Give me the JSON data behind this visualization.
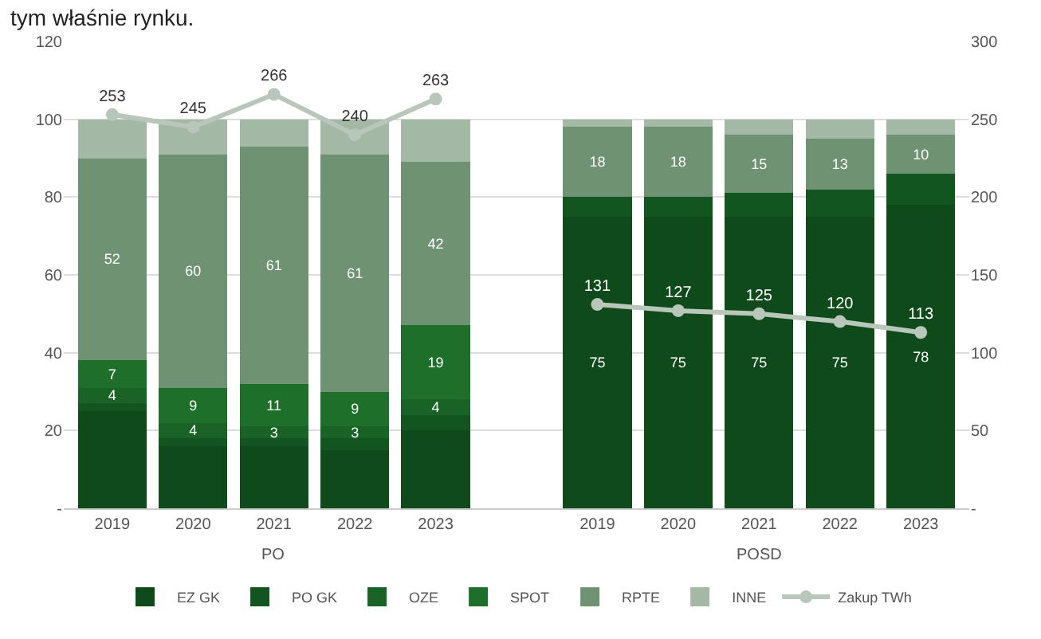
{
  "chart_data": {
    "type": "bar",
    "title": "tym właśnie rynku.",
    "stacked": true,
    "categories": [
      "2019",
      "2020",
      "2021",
      "2022",
      "2023",
      null,
      "2019",
      "2020",
      "2021",
      "2022",
      "2023"
    ],
    "annotations": [
      "PO",
      "POSD"
    ],
    "series": [
      {
        "name": "EZ GK",
        "color": "#0f4a1a",
        "values": [
          25,
          16,
          16,
          15,
          20,
          null,
          75,
          75,
          75,
          75,
          78
        ],
        "value_labels": [
          null,
          null,
          null,
          null,
          null,
          null,
          "75",
          "75",
          "75",
          "75",
          "78"
        ]
      },
      {
        "name": "PO GK",
        "color": "#135520",
        "values": [
          2,
          2,
          2,
          3,
          4,
          null,
          5,
          5,
          6,
          7,
          8
        ]
      },
      {
        "name": "OZE",
        "color": "#186325",
        "values": [
          4,
          4,
          3,
          3,
          4,
          null,
          null,
          null,
          null,
          null,
          null
        ],
        "value_labels": [
          "4",
          "4",
          "3",
          "3",
          "4",
          null,
          null,
          null,
          null,
          null,
          null
        ]
      },
      {
        "name": "SPOT",
        "color": "#1d6f2a",
        "values": [
          7,
          9,
          11,
          9,
          19,
          null,
          null,
          null,
          null,
          null,
          null
        ],
        "value_labels": [
          "7",
          "9",
          "11",
          "9",
          "19",
          null,
          null,
          null,
          null,
          null,
          null
        ]
      },
      {
        "name": "RPTE",
        "color": "#6f9273",
        "values": [
          52,
          60,
          61,
          61,
          42,
          null,
          18,
          18,
          15,
          13,
          10
        ],
        "value_labels": [
          "52",
          "60",
          "61",
          "61",
          "42",
          null,
          "18",
          "18",
          "15",
          "13",
          "10"
        ]
      },
      {
        "name": "INNE",
        "color": "#a3b8a5",
        "values": [
          10,
          9,
          7,
          9,
          11,
          null,
          2,
          2,
          4,
          5,
          4
        ]
      },
      {
        "name": "Zakup TWh",
        "type": "line",
        "axis": "y2",
        "color": "#b9c7bb",
        "marker": "circle",
        "values": [
          253,
          245,
          266,
          240,
          263,
          null,
          131,
          127,
          125,
          120,
          113
        ],
        "value_labels": [
          "253",
          "245",
          "266",
          "240",
          "263",
          null,
          "131",
          "127",
          "125",
          "120",
          "113"
        ]
      }
    ],
    "ylim": [
      0,
      120
    ],
    "yticks": [
      {
        "value": 0,
        "label": "-"
      },
      20,
      40,
      60,
      80,
      100,
      120
    ],
    "y2lim": [
      0,
      300
    ],
    "y2ticks": [
      {
        "value": 0,
        "label": "-"
      },
      50,
      100,
      150,
      200,
      250,
      300
    ],
    "grid": "y",
    "legend": "bottom"
  }
}
